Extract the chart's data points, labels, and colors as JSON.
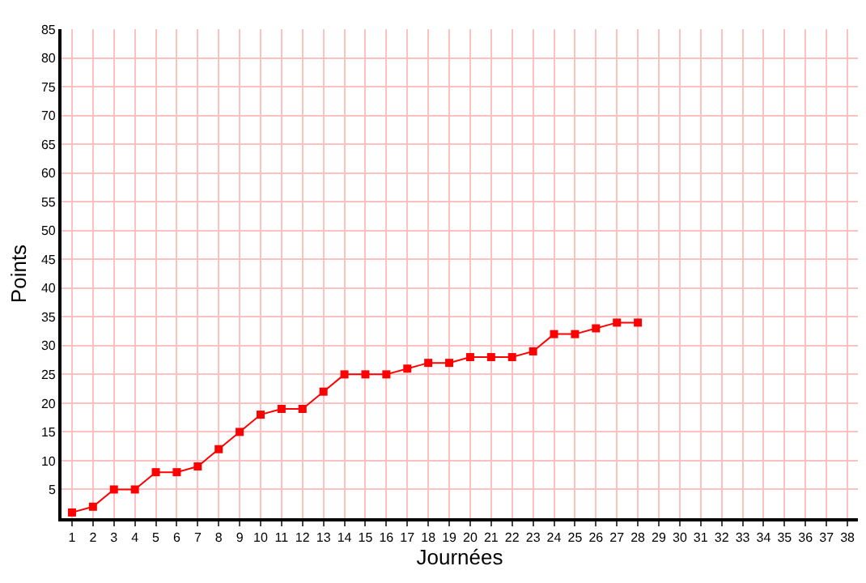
{
  "chart_data": {
    "type": "line",
    "xlabel": "Journées",
    "ylabel": "Points",
    "x": [
      1,
      2,
      3,
      4,
      5,
      6,
      7,
      8,
      9,
      10,
      11,
      12,
      13,
      14,
      15,
      16,
      17,
      18,
      19,
      20,
      21,
      22,
      23,
      24,
      25,
      26,
      27,
      28
    ],
    "series": [
      {
        "color": "#ff0000",
        "values": [
          1,
          2,
          5,
          5,
          8,
          8,
          9,
          12,
          15,
          18,
          19,
          19,
          22,
          25,
          25,
          25,
          26,
          27,
          27,
          28,
          28,
          28,
          29,
          32,
          32,
          33,
          34,
          34
        ]
      }
    ],
    "xlim": [
      0.5,
      38.5
    ],
    "xticks": [
      1,
      2,
      3,
      4,
      5,
      6,
      7,
      8,
      9,
      10,
      11,
      12,
      13,
      14,
      15,
      16,
      17,
      18,
      19,
      20,
      21,
      22,
      23,
      24,
      25,
      26,
      27,
      28,
      29,
      30,
      31,
      32,
      33,
      34,
      35,
      36,
      37,
      38
    ],
    "ylim": [
      0,
      85
    ],
    "yticks": [
      5,
      10,
      15,
      20,
      25,
      30,
      35,
      40,
      45,
      50,
      55,
      60,
      65,
      70,
      75,
      80,
      85
    ],
    "grid": true,
    "legend": false,
    "marker": "square",
    "line_style": "solid"
  }
}
